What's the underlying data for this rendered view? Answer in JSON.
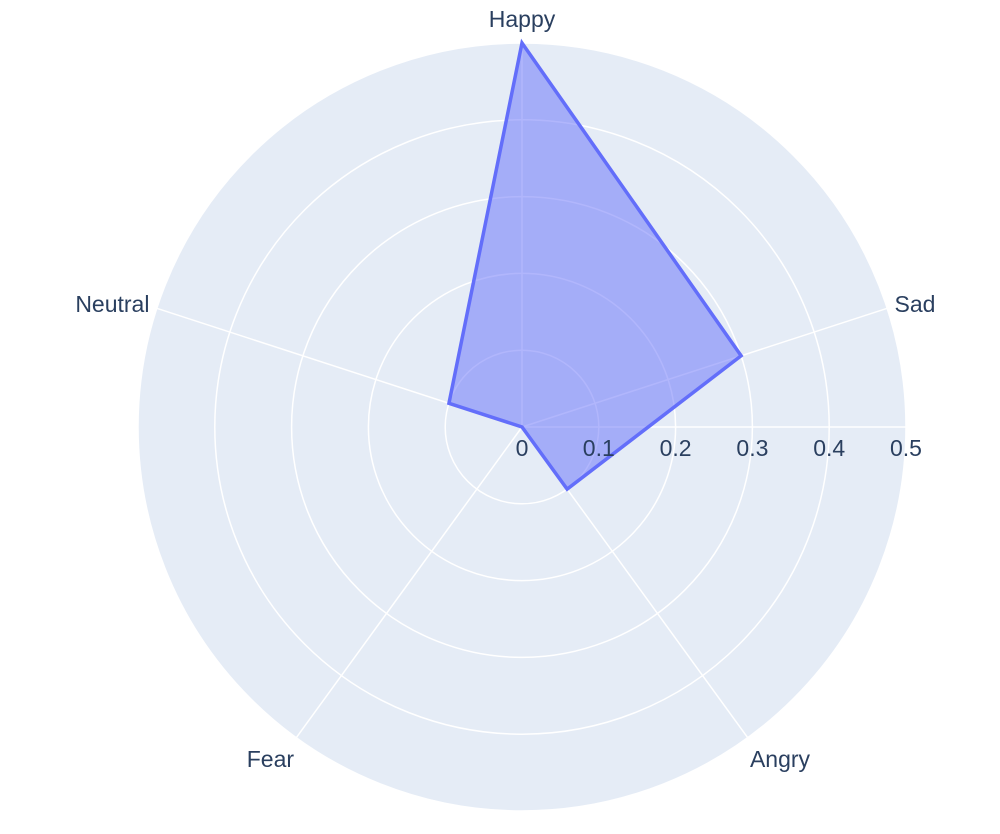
{
  "chart_data": {
    "type": "radar",
    "categories": [
      "Happy",
      "Sad",
      "Angry",
      "Fear",
      "Neutral"
    ],
    "series": [
      {
        "values": [
          0.5,
          0.3,
          0.1,
          0,
          0.1
        ]
      }
    ],
    "radial_range": [
      0,
      0.5
    ],
    "radial_ticks": [
      "0",
      "0.1",
      "0.2",
      "0.3",
      "0.4",
      "0.5"
    ],
    "grid": true,
    "colors": {
      "background": "#e5ecf6",
      "grid": "#ffffff",
      "line": "#636efa",
      "fill": "rgba(99,110,250,0.5)",
      "text": "#2a3f5f"
    }
  }
}
